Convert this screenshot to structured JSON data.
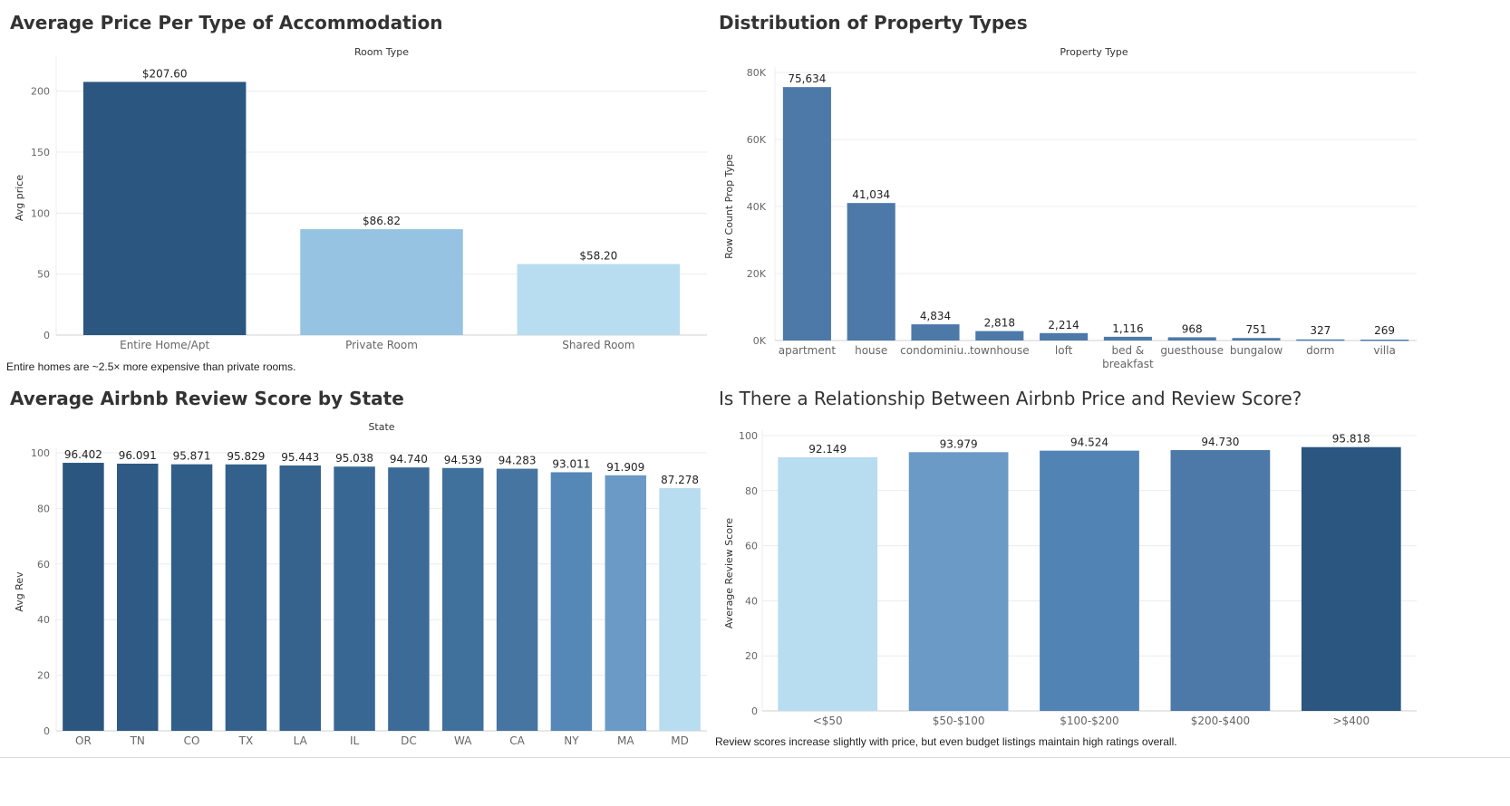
{
  "colors": {
    "darkest": "#2b5680",
    "dark": "#3a6a9a",
    "mid": "#4d79a8",
    "medium": "#6a9ac5",
    "light": "#97c3e3",
    "lightest": "#b8dcf0",
    "grid": "#ececec",
    "axis": "#d0d0d0",
    "tick_text": "#666666"
  },
  "captions": {
    "room": "Entire homes are ~2.5× more expensive than private rooms.",
    "price": "Review scores increase slightly with price, but even budget listings maintain high ratings overall."
  },
  "chart_data": [
    {
      "id": "room",
      "type": "bar",
      "title": "Average Price Per Type of Accommodation",
      "header": "Room Type",
      "ylabel": "Avg price",
      "categories": [
        "Entire Home/Apt",
        "Private Room",
        "Shared Room"
      ],
      "values": [
        207.6,
        86.82,
        58.2
      ],
      "value_labels": [
        "$207.60",
        "$86.82",
        "$58.20"
      ],
      "ylim": [
        0,
        225
      ],
      "ticks": [
        0,
        50,
        100,
        150,
        200
      ],
      "tick_labels": [
        "0",
        "50",
        "100",
        "150",
        "200"
      ],
      "bar_colors": [
        "#2b5680",
        "#97c3e3",
        "#b8dcf0"
      ],
      "grid": true
    },
    {
      "id": "prop",
      "type": "bar",
      "title": "Distribution of Property Types",
      "header": "Property Type",
      "ylabel": "Row Count Prop Type",
      "categories": [
        "apartment",
        "house",
        "condominiu..",
        "townhouse",
        "loft",
        "bed &\nbreakfast",
        "guesthouse",
        "bungalow",
        "dorm",
        "villa"
      ],
      "values": [
        75634,
        41034,
        4834,
        2818,
        2214,
        1116,
        968,
        751,
        327,
        269
      ],
      "value_labels": [
        "75,634",
        "41,034",
        "4,834",
        "2,818",
        "2,214",
        "1,116",
        "968",
        "751",
        "327",
        "269"
      ],
      "ylim": [
        0,
        80000
      ],
      "ticks": [
        0,
        20000,
        40000,
        60000,
        80000
      ],
      "tick_labels": [
        "0K",
        "20K",
        "40K",
        "60K",
        "80K"
      ],
      "bar_colors": [
        "#4d79a8"
      ],
      "grid": true
    },
    {
      "id": "state",
      "type": "bar",
      "title": "Average Airbnb Review Score by State",
      "header": "State",
      "ylabel": "Avg Rev",
      "categories": [
        "OR",
        "TN",
        "CO",
        "TX",
        "LA",
        "IL",
        "DC",
        "WA",
        "CA",
        "NY",
        "MA",
        "MD"
      ],
      "values": [
        96.402,
        96.091,
        95.871,
        95.829,
        95.443,
        95.038,
        94.74,
        94.539,
        94.283,
        93.011,
        91.909,
        87.278
      ],
      "value_labels": [
        "96.402",
        "96.091",
        "95.871",
        "95.829",
        "95.443",
        "95.038",
        "94.740",
        "94.539",
        "94.283",
        "93.011",
        "91.909",
        "87.278"
      ],
      "ylim": [
        0,
        100
      ],
      "ticks": [
        0,
        20,
        40,
        60,
        80,
        100
      ],
      "tick_labels": [
        "0",
        "20",
        "40",
        "60",
        "80",
        "100"
      ],
      "bar_colors": [
        "#2b5680",
        "#2e5a85",
        "#315e89",
        "#33618c",
        "#35638e",
        "#386793",
        "#3c6b97",
        "#40709c",
        "#4675a1",
        "#5588b6",
        "#6a9ac5",
        "#b8dcf0"
      ],
      "grid": true
    },
    {
      "id": "price",
      "type": "bar",
      "title": "Is There a Relationship Between Airbnb Price and Review Score?",
      "header": "",
      "ylabel": "Average Review Score",
      "categories": [
        "<$50",
        "$50-$100",
        "$100-$200",
        "$200-$400",
        ">$400"
      ],
      "values": [
        92.149,
        93.979,
        94.524,
        94.73,
        95.818
      ],
      "value_labels": [
        "92.149",
        "93.979",
        "94.524",
        "94.730",
        "95.818"
      ],
      "ylim": [
        0,
        100
      ],
      "ticks": [
        0,
        20,
        40,
        60,
        80,
        100
      ],
      "tick_labels": [
        "0",
        "20",
        "40",
        "60",
        "80",
        "100"
      ],
      "bar_colors": [
        "#b8dcf0",
        "#6a9ac5",
        "#5183b5",
        "#4d79a8",
        "#2b5680"
      ],
      "grid": true
    }
  ]
}
